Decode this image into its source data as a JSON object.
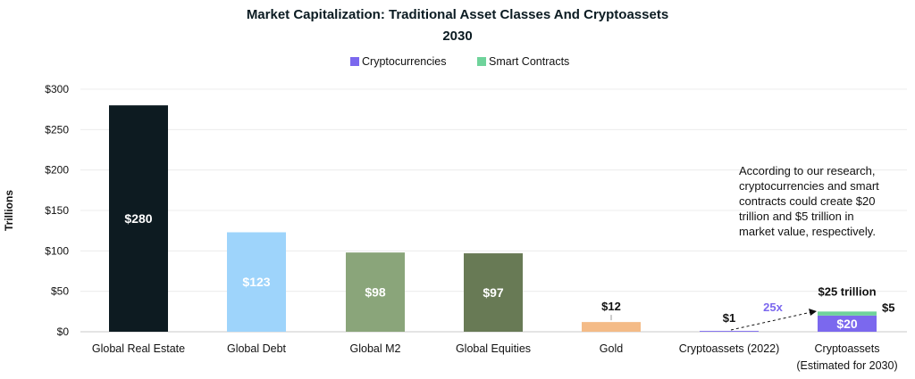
{
  "chart_data": {
    "type": "bar",
    "title": "Market Capitalization: Traditional Asset Classes And Cryptoassets",
    "subtitle": "2030",
    "ylabel": "Trillions",
    "ylim": [
      0,
      300
    ],
    "yticks": [
      0,
      50,
      100,
      150,
      200,
      250,
      300
    ],
    "ytick_labels": [
      "$0",
      "$50",
      "$100",
      "$150",
      "$200",
      "$250",
      "$300"
    ],
    "legend": [
      {
        "name": "Cryptocurrencies",
        "color": "#7b68ee"
      },
      {
        "name": "Smart Contracts",
        "color": "#6fd39b"
      }
    ],
    "legend_position": "top-center",
    "grid": true,
    "bars": [
      {
        "category": "Global Real Estate",
        "category_line2": "",
        "value": 280,
        "label": "$280",
        "color": "#0d1b21",
        "label_pos": "inside"
      },
      {
        "category": "Global Debt",
        "category_line2": "",
        "value": 123,
        "label": "$123",
        "color": "#9ed4fb",
        "label_pos": "inside"
      },
      {
        "category": "Global M2",
        "category_line2": "",
        "value": 98,
        "label": "$98",
        "color": "#8aa57a",
        "label_pos": "inside"
      },
      {
        "category": "Global Equities",
        "category_line2": "",
        "value": 97,
        "label": "$97",
        "color": "#687a55",
        "label_pos": "inside"
      },
      {
        "category": "Gold",
        "category_line2": "",
        "value": 12,
        "label": "$12",
        "color": "#f4bb87",
        "label_pos": "above"
      },
      {
        "category": "Cryptoassets (2022)",
        "category_line2": "",
        "value": 1,
        "label": "$1",
        "color": "#7b68ee",
        "label_pos": "above"
      },
      {
        "category": "Cryptoassets",
        "category_line2": "(Estimated for 2030)",
        "stacked": true,
        "segments": [
          {
            "series": "Cryptocurrencies",
            "value": 20,
            "label": "$20",
            "color": "#7b68ee"
          },
          {
            "series": "Smart Contracts",
            "value": 5,
            "label": "$5",
            "color": "#6fd39b"
          }
        ],
        "total_label": "$25 trillion"
      }
    ],
    "growth_label": "25x",
    "annotation": [
      "According to our research,",
      "cryptocurrencies and smart",
      "contracts could create $20",
      "trillion and $5 trillion in",
      "market value, respectively."
    ]
  }
}
